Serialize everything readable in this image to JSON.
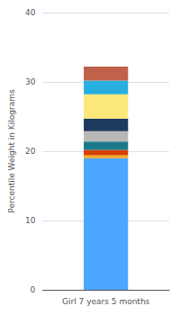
{
  "chart_data": {
    "type": "bar",
    "categories": [
      "Girl 7 years 5 months"
    ],
    "series": [
      {
        "color": "#4da6ff",
        "values": [
          19.0
        ]
      },
      {
        "color": "#f5a623",
        "values": [
          0.4
        ]
      },
      {
        "color": "#d44000",
        "values": [
          0.8
        ]
      },
      {
        "color": "#1a7a8a",
        "values": [
          1.2
        ]
      },
      {
        "color": "#b8b8b8",
        "values": [
          1.5
        ]
      },
      {
        "color": "#1e3a5f",
        "values": [
          1.8
        ]
      },
      {
        "color": "#fce87a",
        "values": [
          3.5
        ]
      },
      {
        "color": "#29aee0",
        "values": [
          2.0
        ]
      },
      {
        "color": "#c0614a",
        "values": [
          2.0
        ]
      }
    ],
    "stacked": true,
    "ylabel": "Percentile Weight in Kilograms",
    "ylim": [
      0,
      40
    ],
    "yticks": [
      0,
      10,
      20,
      30,
      40
    ],
    "grid": true
  }
}
